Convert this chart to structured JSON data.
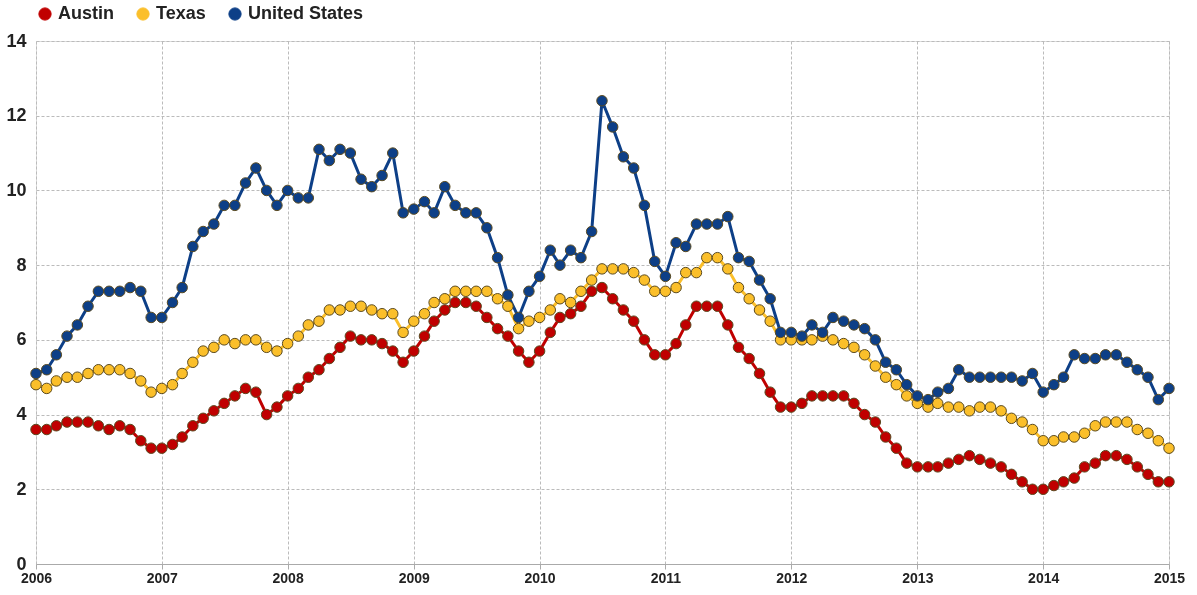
{
  "chart_data": {
    "type": "line",
    "x": [
      "2006-01",
      "2006-02",
      "2006-03",
      "2006-04",
      "2006-05",
      "2006-06",
      "2006-07",
      "2006-08",
      "2006-09",
      "2006-10",
      "2006-11",
      "2006-12",
      "2007-01",
      "2007-02",
      "2007-03",
      "2007-04",
      "2007-05",
      "2007-06",
      "2007-07",
      "2007-08",
      "2007-09",
      "2007-10",
      "2007-11",
      "2007-12",
      "2008-01",
      "2008-02",
      "2008-03",
      "2008-04",
      "2008-05",
      "2008-06",
      "2008-07",
      "2008-08",
      "2008-09",
      "2008-10",
      "2008-11",
      "2008-12",
      "2009-01",
      "2009-02",
      "2009-03",
      "2009-04",
      "2009-05",
      "2009-06",
      "2009-07",
      "2009-08",
      "2009-09",
      "2009-10",
      "2009-11",
      "2009-12",
      "2010-01",
      "2010-02",
      "2010-03",
      "2010-04",
      "2010-05",
      "2010-06",
      "2010-07",
      "2010-08",
      "2010-09",
      "2010-10",
      "2010-11",
      "2010-12",
      "2011-01",
      "2011-02",
      "2011-03",
      "2011-04",
      "2011-05",
      "2011-06",
      "2011-07",
      "2011-08",
      "2011-09",
      "2011-10",
      "2011-11",
      "2011-12",
      "2012-01",
      "2012-02",
      "2012-03",
      "2012-04",
      "2012-05",
      "2012-06",
      "2012-07",
      "2012-08",
      "2012-09",
      "2012-10",
      "2012-11",
      "2012-12",
      "2013-01",
      "2013-02",
      "2013-03",
      "2013-04",
      "2013-05",
      "2013-06",
      "2013-07",
      "2013-08",
      "2013-09",
      "2013-10",
      "2013-11",
      "2013-12",
      "2014-01",
      "2014-02",
      "2014-03",
      "2014-04",
      "2014-05",
      "2014-06",
      "2014-07",
      "2014-08",
      "2014-09",
      "2014-10",
      "2014-11",
      "2014-12",
      "2015-01"
    ],
    "series": [
      {
        "name": "Austin",
        "color": "#c00000",
        "values": [
          3.6,
          3.6,
          3.7,
          3.8,
          3.8,
          3.8,
          3.7,
          3.6,
          3.7,
          3.6,
          3.3,
          3.1,
          3.1,
          3.2,
          3.4,
          3.7,
          3.9,
          4.1,
          4.3,
          4.5,
          4.7,
          4.6,
          4.0,
          4.2,
          4.5,
          4.7,
          5.0,
          5.2,
          5.5,
          5.8,
          6.1,
          6.0,
          6.0,
          5.9,
          5.7,
          5.4,
          5.7,
          6.1,
          6.5,
          6.8,
          7.0,
          7.0,
          6.9,
          6.6,
          6.3,
          6.1,
          5.7,
          5.4,
          5.7,
          6.2,
          6.6,
          6.7,
          6.9,
          7.3,
          7.4,
          7.1,
          6.8,
          6.5,
          6.0,
          5.6,
          5.6,
          5.9,
          6.4,
          6.9,
          6.9,
          6.9,
          6.4,
          5.8,
          5.5,
          5.1,
          4.6,
          4.2,
          4.2,
          4.3,
          4.5,
          4.5,
          4.5,
          4.5,
          4.3,
          4.0,
          3.8,
          3.4,
          3.1,
          2.7,
          2.6,
          2.6,
          2.6,
          2.7,
          2.8,
          2.9,
          2.8,
          2.7,
          2.6,
          2.4,
          2.2,
          2.0,
          2.0,
          2.1,
          2.2,
          2.3,
          2.6,
          2.7,
          2.9,
          2.9,
          2.8,
          2.6,
          2.4,
          2.2,
          2.2
        ]
      },
      {
        "name": "Texas",
        "color": "#fbbf2a",
        "values": [
          4.8,
          4.7,
          4.9,
          5.0,
          5.0,
          5.1,
          5.2,
          5.2,
          5.2,
          5.1,
          4.9,
          4.6,
          4.7,
          4.8,
          5.1,
          5.4,
          5.7,
          5.8,
          6.0,
          5.9,
          6.0,
          6.0,
          5.8,
          5.7,
          5.9,
          6.1,
          6.4,
          6.5,
          6.8,
          6.8,
          6.9,
          6.9,
          6.8,
          6.7,
          6.7,
          6.2,
          6.5,
          6.7,
          7.0,
          7.1,
          7.3,
          7.3,
          7.3,
          7.3,
          7.1,
          6.9,
          6.3,
          6.5,
          6.6,
          6.8,
          7.1,
          7.0,
          7.3,
          7.6,
          7.9,
          7.9,
          7.9,
          7.8,
          7.6,
          7.3,
          7.3,
          7.4,
          7.8,
          7.8,
          8.2,
          8.2,
          7.9,
          7.4,
          7.1,
          6.8,
          6.5,
          6.0,
          6.0,
          6.0,
          6.0,
          6.1,
          6.0,
          5.9,
          5.8,
          5.6,
          5.3,
          5.0,
          4.8,
          4.5,
          4.3,
          4.2,
          4.3,
          4.2,
          4.2,
          4.1,
          4.2,
          4.2,
          4.1,
          3.9,
          3.8,
          3.6,
          3.3,
          3.3,
          3.4,
          3.4,
          3.5,
          3.7,
          3.8,
          3.8,
          3.8,
          3.6,
          3.5,
          3.3,
          3.1
        ]
      },
      {
        "name": "United States",
        "color": "#0d3f87",
        "values": [
          5.1,
          5.2,
          5.6,
          6.1,
          6.4,
          6.9,
          7.3,
          7.3,
          7.3,
          7.4,
          7.3,
          6.6,
          6.6,
          7.0,
          7.4,
          8.5,
          8.9,
          9.1,
          9.6,
          9.6,
          10.2,
          10.6,
          10.0,
          9.6,
          10.0,
          9.8,
          9.8,
          11.1,
          10.8,
          11.1,
          11.0,
          10.3,
          10.1,
          10.4,
          11.0,
          9.4,
          9.5,
          9.7,
          9.4,
          10.1,
          9.6,
          9.4,
          9.4,
          9.0,
          8.2,
          7.2,
          6.6,
          7.3,
          7.7,
          8.4,
          8.0,
          8.4,
          8.2,
          8.9,
          12.4,
          11.7,
          10.9,
          10.6,
          9.6,
          8.1,
          7.7,
          8.6,
          8.5,
          9.1,
          9.1,
          9.1,
          9.3,
          8.2,
          8.1,
          7.6,
          7.1,
          6.2,
          6.2,
          6.1,
          6.4,
          6.2,
          6.6,
          6.5,
          6.4,
          6.3,
          6.0,
          5.4,
          5.2,
          4.8,
          4.5,
          4.4,
          4.6,
          4.7,
          5.2,
          5.0,
          5.0,
          5.0,
          5.0,
          5.0,
          4.9,
          5.1,
          4.6,
          4.8,
          5.0,
          5.6,
          5.5,
          5.5,
          5.6,
          5.6,
          5.4,
          5.2,
          5.0,
          4.4,
          4.7
        ]
      }
    ],
    "xlim": [
      "2006-01",
      "2015-01"
    ],
    "xticks": [
      "2006",
      "2007",
      "2008",
      "2009",
      "2010",
      "2011",
      "2012",
      "2013",
      "2014",
      "2015"
    ],
    "ylim": [
      0,
      14
    ],
    "yticks": [
      0,
      2,
      4,
      6,
      8,
      10,
      12,
      14
    ],
    "grid": true,
    "legend": "top",
    "marker": "circle",
    "line_style": "solid"
  }
}
